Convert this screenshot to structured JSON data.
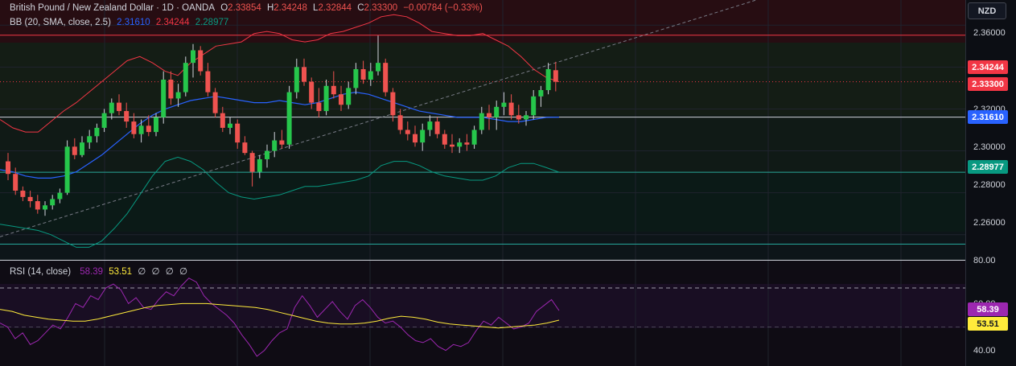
{
  "main_legend": {
    "symbol": "British Pound / New Zealand Dollar · 1D · OANDA",
    "open_label": "O",
    "open": "2.33854",
    "high_label": "H",
    "high": "2.34248",
    "low_label": "L",
    "low": "2.32844",
    "close_label": "C",
    "close": "2.33300",
    "change": "−0.00784 (−0.33%)"
  },
  "bb_legend": {
    "name": "BB (20, SMA, close, 2.5)",
    "basis": "2.31610",
    "upper": "2.34244",
    "lower": "2.28977"
  },
  "rsi_legend": {
    "name": "RSI (14, close)",
    "rsi": "58.39",
    "ma": "53.51",
    "extras": [
      "∅",
      "∅",
      "∅",
      "∅"
    ]
  },
  "currency_button": "NZD",
  "price_axis": {
    "ticks": [
      "2.36000",
      "2.34000",
      "2.32000",
      "2.30000",
      "2.28000",
      "2.26000"
    ],
    "tags": [
      {
        "label": "2.34244",
        "bg": "#f23645",
        "fg": "#ffffff"
      },
      {
        "label": "2.33300",
        "bg": "#f23645",
        "fg": "#ffffff"
      },
      {
        "label": "2.31610",
        "bg": "#2962ff",
        "fg": "#ffffff"
      },
      {
        "label": "2.28977",
        "bg": "#089981",
        "fg": "#ffffff"
      }
    ]
  },
  "rsi_axis": {
    "ticks": [
      "80.00",
      "60.00",
      "40.00"
    ],
    "tags": [
      {
        "label": "58.39",
        "bg": "#9c27b0",
        "fg": "#ffffff"
      },
      {
        "label": "53.51",
        "bg": "#ffeb3b",
        "fg": "#131722"
      }
    ]
  },
  "colors": {
    "up": "#26a69a",
    "up_fill": "#26c64b",
    "down": "#ef5350",
    "bb_basis": "#2962ff",
    "bb_upper": "#f23645",
    "bb_lower": "#089981",
    "rsi": "#9c27b0",
    "rsi_ma": "#ffeb3b"
  },
  "chart_data": {
    "type": "candlestick",
    "price_range": [
      2.248,
      2.372
    ],
    "candles": [
      [
        2.295,
        2.299,
        2.286,
        2.289
      ],
      [
        2.289,
        2.292,
        2.279,
        2.281
      ],
      [
        2.281,
        2.283,
        2.276,
        2.278
      ],
      [
        2.278,
        2.281,
        2.273,
        2.276
      ],
      [
        2.276,
        2.279,
        2.27,
        2.272
      ],
      [
        2.272,
        2.276,
        2.269,
        2.274
      ],
      [
        2.274,
        2.279,
        2.272,
        2.277
      ],
      [
        2.277,
        2.282,
        2.275,
        2.28
      ],
      [
        2.28,
        2.305,
        2.279,
        2.302
      ],
      [
        2.302,
        2.306,
        2.296,
        2.298
      ],
      [
        2.298,
        2.307,
        2.297,
        2.304
      ],
      [
        2.304,
        2.31,
        2.301,
        2.307
      ],
      [
        2.307,
        2.313,
        2.304,
        2.311
      ],
      [
        2.311,
        2.32,
        2.309,
        2.318
      ],
      [
        2.318,
        2.325,
        2.315,
        2.323
      ],
      [
        2.323,
        2.327,
        2.317,
        2.319
      ],
      [
        2.319,
        2.323,
        2.311,
        2.314
      ],
      [
        2.314,
        2.318,
        2.306,
        2.308
      ],
      [
        2.308,
        2.315,
        2.304,
        2.312
      ],
      [
        2.312,
        2.317,
        2.307,
        2.309
      ],
      [
        2.309,
        2.318,
        2.307,
        2.316
      ],
      [
        2.316,
        2.338,
        2.313,
        2.334
      ],
      [
        2.334,
        2.338,
        2.322,
        2.325
      ],
      [
        2.325,
        2.332,
        2.321,
        2.328
      ],
      [
        2.328,
        2.345,
        2.326,
        2.342
      ],
      [
        2.342,
        2.351,
        2.335,
        2.348
      ],
      [
        2.348,
        2.35,
        2.336,
        2.338
      ],
      [
        2.338,
        2.342,
        2.326,
        2.328
      ],
      [
        2.328,
        2.33,
        2.316,
        2.318
      ],
      [
        2.318,
        2.321,
        2.309,
        2.311
      ],
      [
        2.311,
        2.316,
        2.308,
        2.313
      ],
      [
        2.313,
        2.315,
        2.301,
        2.304
      ],
      [
        2.304,
        2.307,
        2.298,
        2.299
      ],
      [
        2.299,
        2.3,
        2.283,
        2.29
      ],
      [
        2.29,
        2.298,
        2.287,
        2.296
      ],
      [
        2.296,
        2.303,
        2.292,
        2.3
      ],
      [
        2.3,
        2.309,
        2.297,
        2.305
      ],
      [
        2.305,
        2.31,
        2.301,
        2.303
      ],
      [
        2.303,
        2.331,
        2.301,
        2.328
      ],
      [
        2.328,
        2.344,
        2.325,
        2.34
      ],
      [
        2.34,
        2.344,
        2.331,
        2.333
      ],
      [
        2.333,
        2.335,
        2.32,
        2.323
      ],
      [
        2.323,
        2.33,
        2.316,
        2.319
      ],
      [
        2.319,
        2.334,
        2.317,
        2.331
      ],
      [
        2.331,
        2.338,
        2.325,
        2.327
      ],
      [
        2.327,
        2.331,
        2.319,
        2.322
      ],
      [
        2.322,
        2.333,
        2.32,
        2.33
      ],
      [
        2.33,
        2.342,
        2.327,
        2.339
      ],
      [
        2.339,
        2.343,
        2.332,
        2.334
      ],
      [
        2.334,
        2.342,
        2.331,
        2.338
      ],
      [
        2.338,
        2.355,
        2.336,
        2.342
      ],
      [
        2.342,
        2.344,
        2.326,
        2.328
      ],
      [
        2.328,
        2.33,
        2.314,
        2.317
      ],
      [
        2.317,
        2.32,
        2.308,
        2.31
      ],
      [
        2.31,
        2.314,
        2.305,
        2.308
      ],
      [
        2.308,
        2.312,
        2.302,
        2.304
      ],
      [
        2.304,
        2.313,
        2.3,
        2.31
      ],
      [
        2.31,
        2.317,
        2.307,
        2.314
      ],
      [
        2.314,
        2.316,
        2.306,
        2.308
      ],
      [
        2.308,
        2.31,
        2.301,
        2.303
      ],
      [
        2.303,
        2.308,
        2.299,
        2.302
      ],
      [
        2.302,
        2.306,
        2.299,
        2.304
      ],
      [
        2.304,
        2.308,
        2.3,
        2.303
      ],
      [
        2.303,
        2.312,
        2.301,
        2.31
      ],
      [
        2.31,
        2.321,
        2.308,
        2.318
      ],
      [
        2.318,
        2.322,
        2.31,
        2.316
      ],
      [
        2.316,
        2.324,
        2.31,
        2.321
      ],
      [
        2.321,
        2.328,
        2.317,
        2.323
      ],
      [
        2.323,
        2.327,
        2.315,
        2.317
      ],
      [
        2.317,
        2.322,
        2.313,
        2.315
      ],
      [
        2.315,
        2.319,
        2.312,
        2.317
      ],
      [
        2.317,
        2.329,
        2.315,
        2.326
      ],
      [
        2.326,
        2.331,
        2.321,
        2.329
      ],
      [
        2.329,
        2.342,
        2.327,
        2.339
      ],
      [
        2.3385,
        2.3425,
        2.3284,
        2.333
      ]
    ],
    "bb_upper": [
      2.315,
      2.311,
      2.309,
      2.309,
      2.314,
      2.319,
      2.323,
      2.328,
      2.333,
      2.338,
      2.343,
      2.345,
      2.342,
      2.338,
      2.336,
      2.342,
      2.346,
      2.35,
      2.351,
      2.352,
      2.356,
      2.357,
      2.356,
      2.353,
      2.352,
      2.353,
      2.356,
      2.357,
      2.359,
      2.361,
      2.364,
      2.365,
      2.364,
      2.361,
      2.357,
      2.356,
      2.355,
      2.355,
      2.356,
      2.353,
      2.35,
      2.345,
      2.339,
      2.335,
      2.333
    ],
    "bb_basis": [
      2.291,
      2.29,
      2.288,
      2.287,
      2.287,
      2.288,
      2.29,
      2.294,
      2.298,
      2.303,
      2.308,
      2.313,
      2.317,
      2.32,
      2.322,
      2.324,
      2.325,
      2.326,
      2.325,
      2.324,
      2.323,
      2.323,
      2.324,
      2.323,
      2.322,
      2.323,
      2.325,
      2.327,
      2.328,
      2.327,
      2.325,
      2.323,
      2.321,
      2.319,
      2.318,
      2.317,
      2.316,
      2.316,
      2.316,
      2.315,
      2.314,
      2.314,
      2.315,
      2.316,
      2.3161
    ],
    "bb_lower": [
      2.265,
      2.264,
      2.263,
      2.262,
      2.26,
      2.257,
      2.254,
      2.254,
      2.257,
      2.263,
      2.27,
      2.279,
      2.288,
      2.295,
      2.297,
      2.295,
      2.291,
      2.285,
      2.28,
      2.278,
      2.277,
      2.278,
      2.279,
      2.281,
      2.283,
      2.283,
      2.284,
      2.285,
      2.286,
      2.288,
      2.293,
      2.295,
      2.295,
      2.293,
      2.29,
      2.288,
      2.287,
      2.286,
      2.286,
      2.288,
      2.292,
      2.294,
      2.294,
      2.292,
      2.2898
    ],
    "rsi_range": [
      30,
      84
    ],
    "rsi": [
      52,
      50,
      44,
      47,
      41,
      43,
      47,
      51,
      49,
      55,
      62,
      60,
      66,
      64,
      70,
      72,
      69,
      62,
      65,
      60,
      59,
      64,
      68,
      66,
      71,
      75,
      73,
      66,
      62,
      59,
      56,
      52,
      46,
      41,
      35,
      38,
      43,
      47,
      49,
      60,
      66,
      61,
      55,
      59,
      63,
      58,
      54,
      61,
      64,
      60,
      55,
      52,
      53,
      50,
      46,
      43,
      42,
      44,
      40,
      38,
      41,
      40,
      42,
      48,
      53,
      51,
      55,
      52,
      49,
      50,
      52,
      58,
      61,
      64,
      58.39
    ],
    "rsi_ma": [
      59,
      58,
      56,
      55,
      54,
      53.5,
      53,
      53,
      54,
      55.5,
      57,
      58.5,
      60,
      61,
      61.5,
      62,
      62,
      62,
      61.5,
      61,
      60.5,
      60,
      59,
      57.5,
      56,
      54.5,
      53,
      52,
      51.5,
      51.5,
      52,
      53,
      54.5,
      55.5,
      55,
      54,
      52.5,
      51.5,
      51,
      50.5,
      50,
      49.5,
      50,
      50.5,
      51,
      52,
      53.51
    ]
  }
}
